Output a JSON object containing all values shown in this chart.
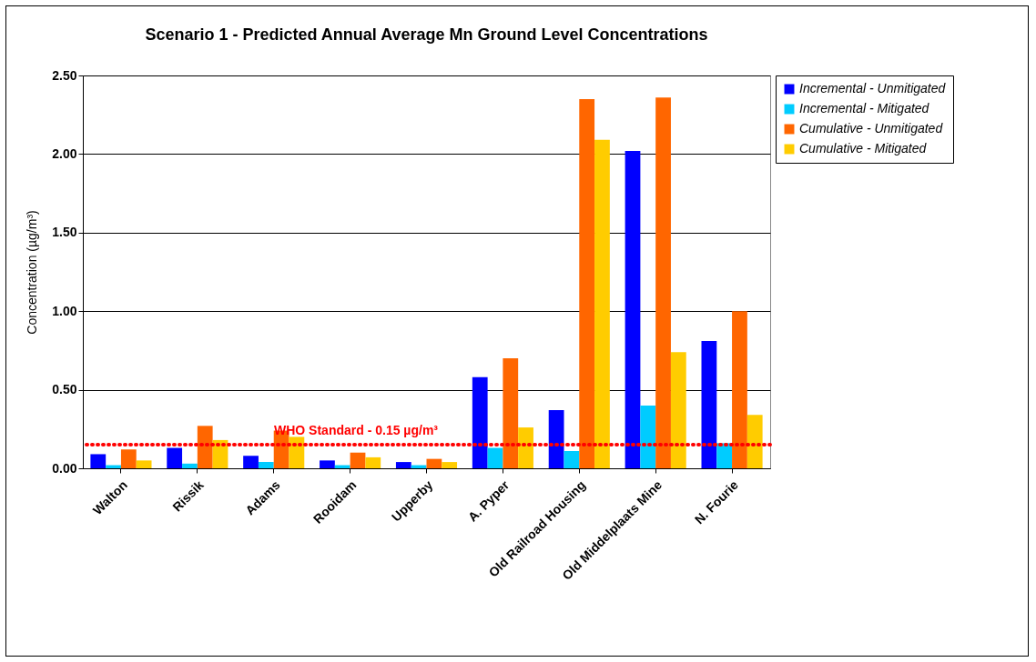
{
  "chart_data": {
    "type": "bar",
    "title": "Scenario 1 - Predicted Annual Average Mn Ground Level Concentrations",
    "ylabel": "Concentration (µg/m³)",
    "categories": [
      "Walton",
      "Rissik",
      "Adams",
      "Rooidam",
      "Upperby",
      "A. Pyper",
      "Old Railroad Housing",
      "Old Middelplaats Mine",
      "N. Fourie"
    ],
    "series": [
      {
        "name": "Incremental - Unmitigated",
        "color": "#0000ff",
        "values": [
          0.09,
          0.13,
          0.08,
          0.05,
          0.04,
          0.58,
          0.37,
          2.02,
          0.81
        ]
      },
      {
        "name": "Incremental - Mitigated",
        "color": "#00ccff",
        "values": [
          0.02,
          0.03,
          0.04,
          0.02,
          0.02,
          0.13,
          0.11,
          0.4,
          0.16
        ]
      },
      {
        "name": "Cumulative - Unmitigated",
        "color": "#ff6600",
        "values": [
          0.12,
          0.27,
          0.24,
          0.1,
          0.06,
          0.7,
          2.35,
          2.36,
          1.0
        ]
      },
      {
        "name": "Cumulative - Mitigated",
        "color": "#ffcc00",
        "values": [
          0.05,
          0.18,
          0.2,
          0.07,
          0.04,
          0.26,
          2.09,
          0.74,
          0.34
        ]
      }
    ],
    "ylim": [
      0,
      2.5
    ],
    "yticks": [
      {
        "value": 0,
        "label": "0.00"
      },
      {
        "value": 0.5,
        "label": "0.50"
      },
      {
        "value": 1,
        "label": "1.00"
      },
      {
        "value": 1.5,
        "label": "1.50"
      },
      {
        "value": 2,
        "label": "2.00"
      },
      {
        "value": 2.5,
        "label": "2.50"
      }
    ],
    "grid": "y",
    "legend": "right",
    "ref_lines": [
      {
        "axis": "y",
        "value": 0.15,
        "label": "WHO Standard - 0.15 µg/m³",
        "color": "#ff0000",
        "line_style": "dotted"
      }
    ]
  }
}
